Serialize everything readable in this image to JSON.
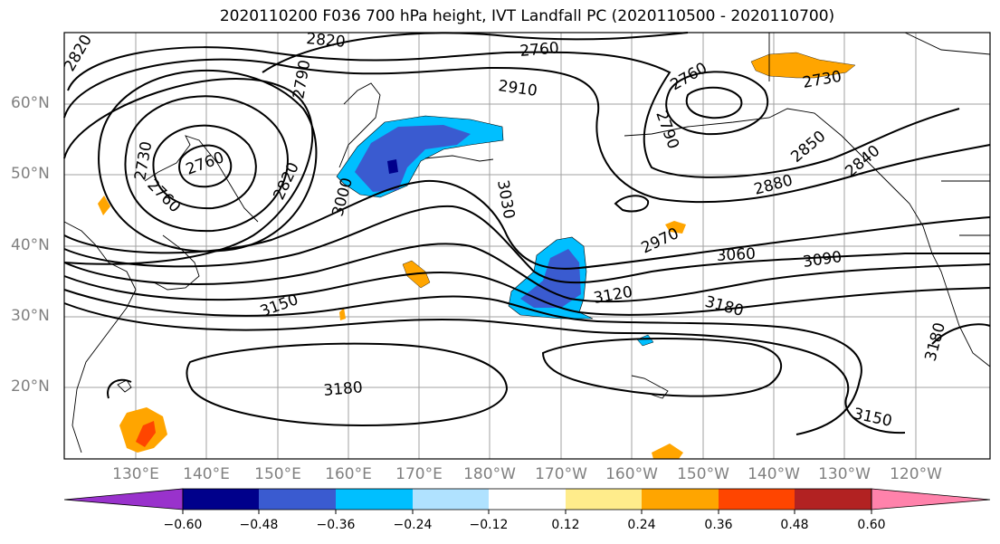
{
  "title": "2020110200 F036 700 hPa height, IVT Landfall PC (2020110500 - 2020110700)",
  "lat_labels": [
    "60°N",
    "50°N",
    "40°N",
    "30°N",
    "20°N"
  ],
  "lon_labels": [
    "130°E",
    "140°E",
    "150°E",
    "160°E",
    "170°E",
    "180°W",
    "170°W",
    "160°W",
    "150°W",
    "140°W",
    "130°W",
    "120°W"
  ],
  "contour_labels": [
    "2820",
    "2820",
    "2760",
    "2910",
    "2760",
    "2730",
    "2730",
    "2790",
    "2760",
    "2790",
    "2820",
    "2760",
    "3000",
    "3030",
    "2880",
    "2850",
    "2840",
    "2970",
    "3060",
    "3090",
    "3120",
    "3150",
    "3180",
    "3180",
    "3180",
    "3150"
  ],
  "colorbar": {
    "ticks": [
      "−0.60",
      "−0.48",
      "−0.36",
      "−0.24",
      "−0.12",
      "0.12",
      "0.24",
      "0.36",
      "0.48",
      "0.60"
    ],
    "colors": [
      "#9932cc",
      "#00008b",
      "#3a5bd0",
      "#00bfff",
      "#b0e2ff",
      "#ffffff",
      "#ffec8b",
      "#ffa500",
      "#ff4500",
      "#b22222",
      "#ff82ab"
    ]
  }
}
